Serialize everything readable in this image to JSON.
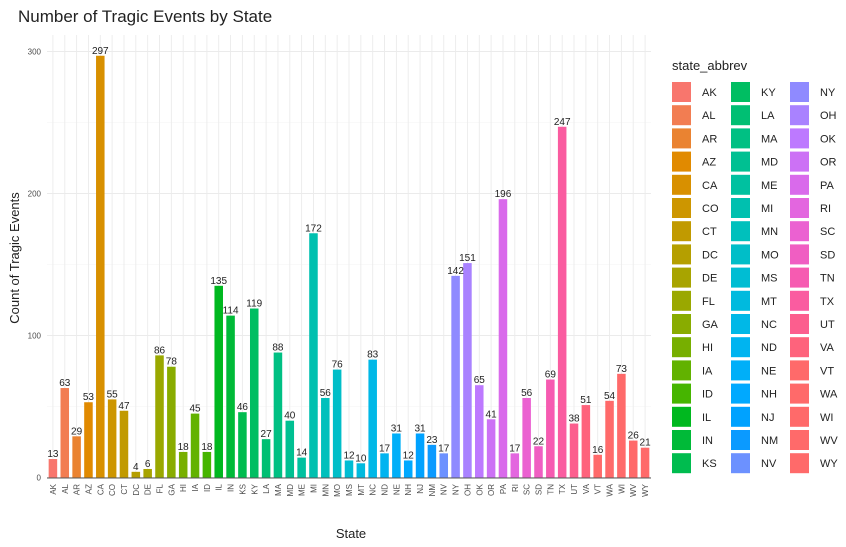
{
  "chart_data": {
    "type": "bar",
    "title": "Number of Tragic Events by State",
    "xlabel": "State",
    "ylabel": "Count of Tragic Events",
    "ylim": [
      0,
      320
    ],
    "yticks": [
      0,
      100,
      200,
      300
    ],
    "grid": true,
    "legend": {
      "title": "state_abbrev",
      "placement": "right",
      "columns": 3
    },
    "categories": [
      "AK",
      "AL",
      "AR",
      "AZ",
      "CA",
      "CO",
      "CT",
      "DC",
      "DE",
      "FL",
      "GA",
      "HI",
      "IA",
      "ID",
      "IL",
      "IN",
      "KS",
      "KY",
      "LA",
      "MA",
      "MD",
      "ME",
      "MI",
      "MN",
      "MO",
      "MS",
      "MT",
      "NC",
      "ND",
      "NE",
      "NH",
      "NJ",
      "NM",
      "NV",
      "NY",
      "OH",
      "OK",
      "OR",
      "PA",
      "RI",
      "SC",
      "SD",
      "TN",
      "TX",
      "UT",
      "VA",
      "VT",
      "WA",
      "WI",
      "WV",
      "WY"
    ],
    "values": [
      13,
      63,
      29,
      53,
      297,
      55,
      47,
      4,
      6,
      86,
      78,
      18,
      45,
      18,
      135,
      114,
      46,
      119,
      27,
      88,
      40,
      14,
      172,
      56,
      76,
      12,
      10,
      83,
      17,
      31,
      12,
      31,
      23,
      17,
      142,
      151,
      65,
      41,
      196,
      17,
      56,
      22,
      69,
      247,
      38,
      51,
      16,
      54,
      73,
      26,
      21
    ],
    "colors": [
      "#F8766D",
      "#F27D52",
      "#EA8331",
      "#E18A00",
      "#D89000",
      "#CD9600",
      "#C19A00",
      "#B59F00",
      "#A8A400",
      "#9AA800",
      "#89AC00",
      "#77AF00",
      "#62B200",
      "#46B500",
      "#00B81F",
      "#00BA38",
      "#00BC4F",
      "#00BE62",
      "#00BF73",
      "#00C083",
      "#00C092",
      "#00C1A0",
      "#00C0AF",
      "#00C0BC",
      "#00BEC8",
      "#00BDD3",
      "#00BADE",
      "#00B8E7",
      "#00B4F0",
      "#00AFF8",
      "#00A9FF",
      "#00A2FF",
      "#0B9AFF",
      "#6C91FF",
      "#8F8AFF",
      "#A982FF",
      "#BD79FF",
      "#CC71F5",
      "#D96AEB",
      "#E366DF",
      "#EB61D1",
      "#F05EC2",
      "#F65BB1",
      "#FA5CA0",
      "#FC5E8E",
      "#FE637C",
      "#FF6A6A",
      "#FF6A6A",
      "#FF6A6A",
      "#FF6A6A",
      "#FF6A6A"
    ]
  }
}
